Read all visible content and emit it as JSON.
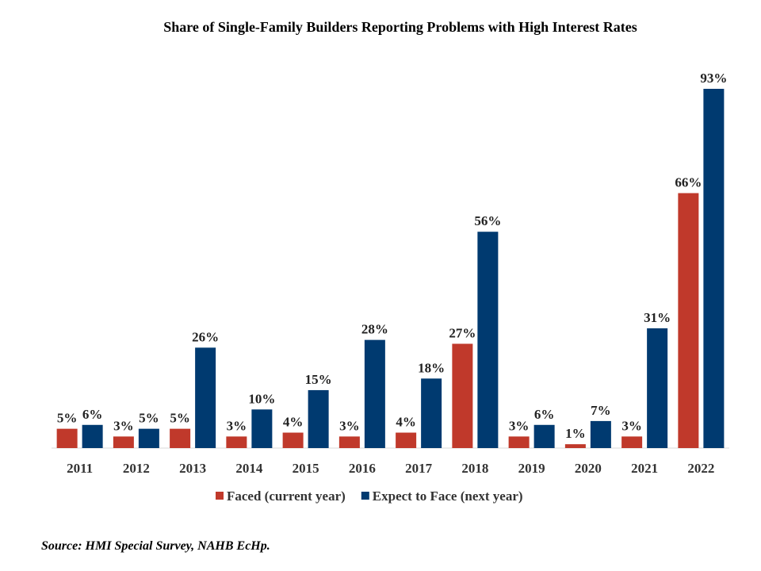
{
  "chart_data": {
    "type": "bar",
    "title": "Share of Single-Family  Builders  Reporting  Problems  with  High  Interest  Rates",
    "categories": [
      "2011",
      "2012",
      "2013",
      "2014",
      "2015",
      "2016",
      "2017",
      "2018",
      "2019",
      "2020",
      "2021",
      "2022"
    ],
    "series": [
      {
        "name": "Faced (current year)",
        "color": "#c0392b",
        "values": [
          5,
          3,
          5,
          3,
          4,
          3,
          4,
          27,
          3,
          1,
          3,
          66
        ],
        "labels": [
          "5%",
          "3%",
          "5%",
          "3%",
          "4%",
          "3%",
          "4%",
          "27%",
          "3%",
          "1%",
          "3%",
          "66%"
        ]
      },
      {
        "name": "Expect to Face (next year)",
        "color": "#003a70",
        "values": [
          6,
          5,
          26,
          10,
          15,
          28,
          18,
          56,
          6,
          7,
          31,
          93
        ],
        "labels": [
          "6%",
          "5%",
          "26%",
          "10%",
          "15%",
          "28%",
          "18%",
          "56%",
          "6%",
          "7%",
          "31%",
          "93%"
        ]
      }
    ],
    "ylim": [
      0,
      100
    ],
    "grid": false,
    "legend_position": "bottom"
  },
  "source": "Source: HMI Special Survey, NAHB EcHp."
}
